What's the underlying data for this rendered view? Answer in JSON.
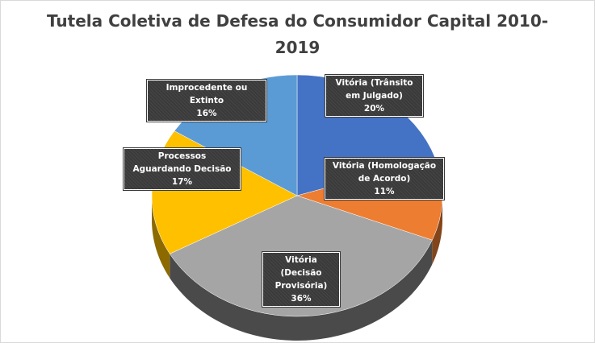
{
  "chart_data": {
    "type": "pie",
    "title": "Tutela Coletiva de Defesa do Consumidor Capital 2010-\n2019",
    "slices": [
      {
        "label": "Vitória (Trânsito em Julgado)",
        "value": 20,
        "value_label": "20%",
        "color": "#4472c4"
      },
      {
        "label": "Vitória (Homologação de Acordo)",
        "value": 11,
        "value_label": "11%",
        "color": "#ed7d31"
      },
      {
        "label": "Vitória (Decisão Provisória)",
        "value": 36,
        "value_label": "36%",
        "color": "#a5a5a5"
      },
      {
        "label": "Processos Aguardando Decisão",
        "value": 17,
        "value_label": "17%",
        "color": "#ffc000"
      },
      {
        "label": "Improcedente ou Extinto",
        "value": 16,
        "value_label": "16%",
        "color": "#5b9bd5"
      }
    ],
    "legend": "none",
    "style": "3d-exploded"
  }
}
